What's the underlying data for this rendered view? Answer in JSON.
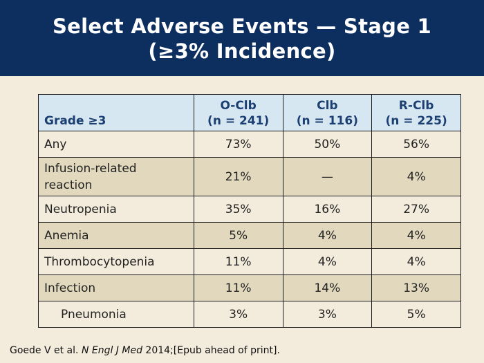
{
  "title": {
    "line1": "Select Adverse Events — Stage 1",
    "line2": "(≥3% Incidence)"
  },
  "table": {
    "headers": [
      {
        "line1": "",
        "line2": "Grade ≥3"
      },
      {
        "line1": "O-Clb",
        "line2": "(n = 241)"
      },
      {
        "line1": "Clb",
        "line2": "(n = 116)"
      },
      {
        "line1": "R-Clb",
        "line2": "(n = 225)"
      }
    ],
    "rows": [
      {
        "label": "Any",
        "values": [
          "73%",
          "50%",
          "56%"
        ]
      },
      {
        "label": "Infusion-related reaction",
        "values": [
          "21%",
          "—",
          "4%"
        ]
      },
      {
        "label": "Neutropenia",
        "values": [
          "35%",
          "16%",
          "27%"
        ]
      },
      {
        "label": "Anemia",
        "values": [
          "5%",
          "4%",
          "4%"
        ]
      },
      {
        "label": "Thrombocytopenia",
        "values": [
          "11%",
          "4%",
          "4%"
        ]
      },
      {
        "label": "Infection",
        "values": [
          "11%",
          "14%",
          "13%"
        ]
      },
      {
        "label": "Pneumonia",
        "values": [
          "3%",
          "3%",
          "5%"
        ]
      }
    ]
  },
  "citation": {
    "prefix": "Goede V et al. ",
    "journal": "N Engl J Med",
    "suffix": " 2014;[Epub ahead of print]."
  }
}
